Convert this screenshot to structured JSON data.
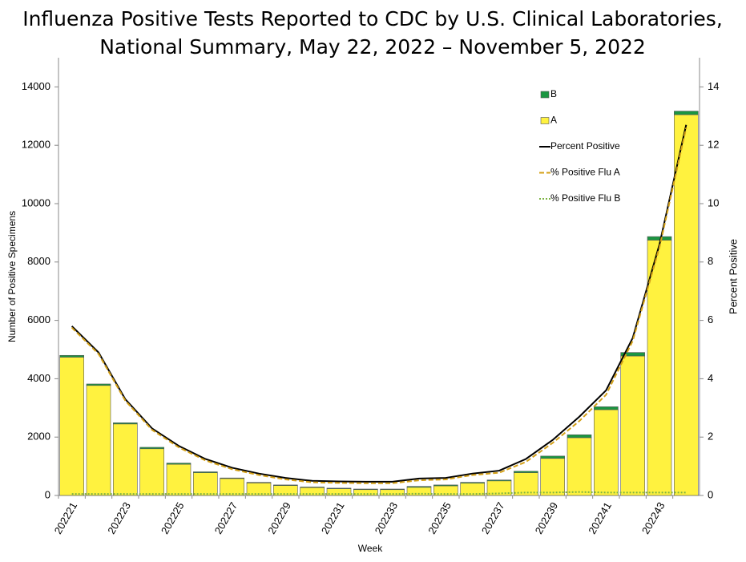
{
  "chart_data": {
    "type": "bar",
    "title": [
      "Influenza Positive Tests Reported to CDC by U.S. Clinical Laboratories,",
      "National Summary, May 22, 2022 – November 5, 2022"
    ],
    "x_label": "Week",
    "y_label": "Number of Positive Specimens",
    "y2_label": "Percent Positive",
    "categories": [
      "202221",
      null,
      "202223",
      null,
      "202225",
      null,
      "202227",
      null,
      "202229",
      null,
      "202231",
      null,
      "202233",
      null,
      "202235",
      null,
      "202237",
      null,
      "202239",
      null,
      "202241",
      null,
      "202243",
      null
    ],
    "series": [
      {
        "name": "B",
        "type": "bar",
        "color": "#1a9641",
        "values": [
          60,
          50,
          40,
          50,
          40,
          30,
          20,
          20,
          20,
          20,
          20,
          20,
          20,
          30,
          30,
          30,
          30,
          50,
          80,
          100,
          100,
          120,
          120,
          120
        ]
      },
      {
        "name": "A",
        "type": "bar",
        "color": "#fff23f",
        "values": [
          4740,
          3770,
          2450,
          1600,
          1070,
          780,
          580,
          430,
          340,
          270,
          230,
          200,
          200,
          280,
          330,
          420,
          500,
          780,
          1270,
          1980,
          2940,
          4780,
          8750,
          13050
        ]
      },
      {
        "name": "Percent Positive",
        "type": "line",
        "axis": "y2",
        "color": "#000000",
        "dash": "solid",
        "values": [
          5.8,
          4.9,
          3.3,
          2.3,
          1.7,
          1.25,
          0.95,
          0.75,
          0.6,
          0.5,
          0.48,
          0.47,
          0.47,
          0.58,
          0.6,
          0.75,
          0.85,
          1.25,
          1.9,
          2.7,
          3.6,
          5.4,
          8.6,
          12.7
        ]
      },
      {
        "name": "% Positive Flu A",
        "type": "line",
        "axis": "y2",
        "color": "#d4a017",
        "dash": "dashed",
        "values": [
          5.75,
          4.85,
          3.25,
          2.25,
          1.65,
          1.2,
          0.9,
          0.7,
          0.55,
          0.45,
          0.43,
          0.42,
          0.42,
          0.52,
          0.55,
          0.7,
          0.78,
          1.15,
          1.8,
          2.55,
          3.45,
          5.3,
          8.5,
          12.6
        ]
      },
      {
        "name": "% Positive Flu B",
        "type": "line",
        "axis": "y2",
        "color": "#7cb342",
        "dash": "dotted",
        "values": [
          0.05,
          0.05,
          0.05,
          0.05,
          0.05,
          0.05,
          0.05,
          0.05,
          0.05,
          0.05,
          0.05,
          0.05,
          0.05,
          0.06,
          0.05,
          0.05,
          0.07,
          0.1,
          0.1,
          0.12,
          0.1,
          0.1,
          0.1,
          0.1
        ]
      }
    ],
    "ylim": [
      0,
      15000
    ],
    "yticks": [
      0,
      2000,
      4000,
      6000,
      8000,
      10000,
      12000,
      14000
    ],
    "y2lim": [
      0,
      15
    ],
    "y2ticks": [
      0,
      2,
      4,
      6,
      8,
      10,
      12,
      14
    ],
    "stacked": true,
    "grid": false,
    "legend": "top-right"
  }
}
